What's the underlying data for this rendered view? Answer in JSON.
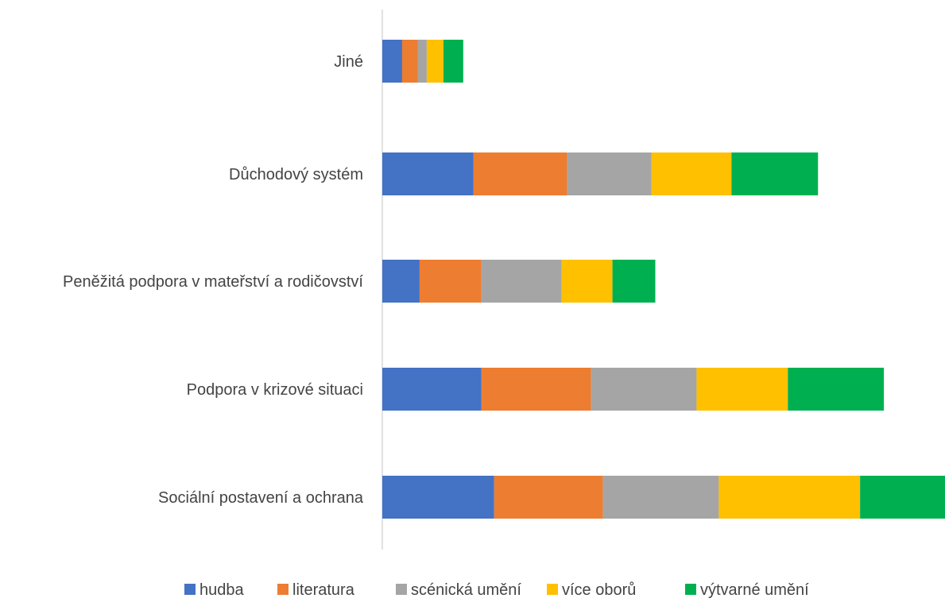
{
  "chart_data": {
    "type": "bar",
    "orientation": "horizontal",
    "stacked": true,
    "categories": [
      "Jiné",
      "Důchodový systém",
      "Peněžitá podpora v mateřství a rodičovství",
      "Podpora v krizové situaci",
      "Sociální postavení a ochrana"
    ],
    "series": [
      {
        "name": "hudba",
        "color": "#4472C4",
        "values": [
          25,
          115,
          47,
          125,
          141
        ]
      },
      {
        "name": "literatura",
        "color": "#ED7D31",
        "values": [
          20,
          118,
          78,
          138,
          137
        ]
      },
      {
        "name": "scénická umění",
        "color": "#A5A5A5",
        "values": [
          11,
          106,
          101,
          133,
          146
        ]
      },
      {
        "name": "více oborů",
        "color": "#FFC000",
        "values": [
          21,
          101,
          64,
          115,
          178
        ]
      },
      {
        "name": "výtvarné umění",
        "color": "#00B050",
        "values": [
          25,
          109,
          54,
          121,
          107
        ]
      }
    ],
    "xlim": [
      0,
      709
    ],
    "grid": false,
    "axis_labels_visible": false,
    "legend_position": "bottom",
    "title": "",
    "xlabel": "",
    "ylabel": ""
  }
}
